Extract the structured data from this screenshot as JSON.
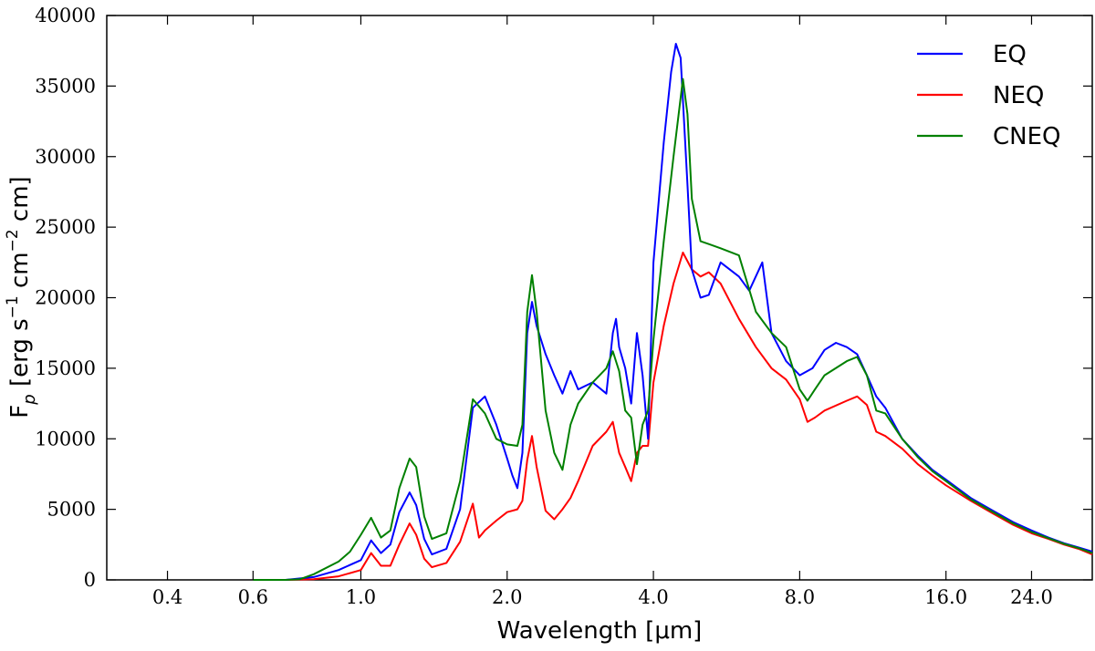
{
  "chart_data": {
    "type": "line",
    "xlabel": "Wavelength [μm]",
    "ylabel": "F_p [erg s⁻¹ cm⁻² cm]",
    "xscale": "log",
    "xlim": [
      0.3,
      32.0
    ],
    "ylim": [
      0,
      40000
    ],
    "xticks": [
      0.4,
      0.6,
      1.0,
      2.0,
      4.0,
      8.0,
      16.0,
      24.0
    ],
    "xtick_labels": [
      "0.4",
      "0.6",
      "1.0",
      "2.0",
      "4.0",
      "8.0",
      "16.0",
      "24.0"
    ],
    "yticks": [
      0,
      5000,
      10000,
      15000,
      20000,
      25000,
      30000,
      35000,
      40000
    ],
    "ytick_labels": [
      "0",
      "5000",
      "10000",
      "15000",
      "20000",
      "25000",
      "30000",
      "35000",
      "40000"
    ],
    "grid": false,
    "legend_position": "top-right",
    "series": [
      {
        "name": "EQ",
        "color": "#0000ff",
        "points": [
          [
            0.6,
            0
          ],
          [
            0.7,
            0
          ],
          [
            0.8,
            200
          ],
          [
            0.9,
            700
          ],
          [
            1.0,
            1400
          ],
          [
            1.05,
            2800
          ],
          [
            1.1,
            1900
          ],
          [
            1.15,
            2500
          ],
          [
            1.2,
            4800
          ],
          [
            1.26,
            6200
          ],
          [
            1.3,
            5300
          ],
          [
            1.35,
            2900
          ],
          [
            1.4,
            1800
          ],
          [
            1.5,
            2200
          ],
          [
            1.6,
            5000
          ],
          [
            1.7,
            12200
          ],
          [
            1.8,
            13000
          ],
          [
            1.9,
            11000
          ],
          [
            2.0,
            8600
          ],
          [
            2.05,
            7400
          ],
          [
            2.1,
            6500
          ],
          [
            2.15,
            9000
          ],
          [
            2.2,
            17500
          ],
          [
            2.25,
            19700
          ],
          [
            2.3,
            18000
          ],
          [
            2.4,
            16000
          ],
          [
            2.5,
            14500
          ],
          [
            2.6,
            13200
          ],
          [
            2.7,
            14800
          ],
          [
            2.8,
            13500
          ],
          [
            3.0,
            14000
          ],
          [
            3.2,
            13200
          ],
          [
            3.3,
            17500
          ],
          [
            3.35,
            18500
          ],
          [
            3.4,
            16500
          ],
          [
            3.5,
            15000
          ],
          [
            3.6,
            12500
          ],
          [
            3.7,
            17500
          ],
          [
            3.8,
            14500
          ],
          [
            3.9,
            10000
          ],
          [
            4.0,
            22500
          ],
          [
            4.2,
            31000
          ],
          [
            4.35,
            36000
          ],
          [
            4.45,
            38000
          ],
          [
            4.55,
            37000
          ],
          [
            4.7,
            28000
          ],
          [
            4.8,
            22000
          ],
          [
            5.0,
            20000
          ],
          [
            5.2,
            20200
          ],
          [
            5.5,
            22500
          ],
          [
            6.0,
            21500
          ],
          [
            6.3,
            20500
          ],
          [
            6.7,
            22500
          ],
          [
            7.0,
            17500
          ],
          [
            7.5,
            15500
          ],
          [
            8.0,
            14500
          ],
          [
            8.5,
            15000
          ],
          [
            9.0,
            16300
          ],
          [
            9.5,
            16800
          ],
          [
            10.0,
            16500
          ],
          [
            10.5,
            16000
          ],
          [
            11.0,
            14500
          ],
          [
            11.5,
            13000
          ],
          [
            12.0,
            12200
          ],
          [
            13.0,
            10000
          ],
          [
            14.0,
            8800
          ],
          [
            15.0,
            7800
          ],
          [
            16.0,
            7100
          ],
          [
            18.0,
            5800
          ],
          [
            20.0,
            4900
          ],
          [
            22.0,
            4100
          ],
          [
            24.0,
            3500
          ],
          [
            26.0,
            3000
          ],
          [
            28.0,
            2600
          ],
          [
            30.0,
            2300
          ],
          [
            32.0,
            2000
          ]
        ]
      },
      {
        "name": "NEQ",
        "color": "#ff0000",
        "points": [
          [
            0.6,
            0
          ],
          [
            0.7,
            0
          ],
          [
            0.8,
            50
          ],
          [
            0.9,
            250
          ],
          [
            1.0,
            700
          ],
          [
            1.05,
            1900
          ],
          [
            1.1,
            1000
          ],
          [
            1.15,
            1000
          ],
          [
            1.2,
            2500
          ],
          [
            1.26,
            4000
          ],
          [
            1.3,
            3200
          ],
          [
            1.35,
            1500
          ],
          [
            1.4,
            900
          ],
          [
            1.5,
            1200
          ],
          [
            1.6,
            2700
          ],
          [
            1.7,
            5400
          ],
          [
            1.75,
            3000
          ],
          [
            1.8,
            3500
          ],
          [
            1.9,
            4200
          ],
          [
            2.0,
            4800
          ],
          [
            2.1,
            5000
          ],
          [
            2.15,
            5600
          ],
          [
            2.2,
            8500
          ],
          [
            2.25,
            10200
          ],
          [
            2.3,
            8000
          ],
          [
            2.4,
            4900
          ],
          [
            2.5,
            4300
          ],
          [
            2.6,
            5000
          ],
          [
            2.7,
            5800
          ],
          [
            2.8,
            7000
          ],
          [
            3.0,
            9500
          ],
          [
            3.2,
            10500
          ],
          [
            3.3,
            11200
          ],
          [
            3.4,
            9000
          ],
          [
            3.5,
            8000
          ],
          [
            3.6,
            7000
          ],
          [
            3.7,
            9000
          ],
          [
            3.8,
            9500
          ],
          [
            3.9,
            9500
          ],
          [
            4.0,
            14000
          ],
          [
            4.2,
            18000
          ],
          [
            4.4,
            21000
          ],
          [
            4.6,
            23200
          ],
          [
            4.8,
            22000
          ],
          [
            5.0,
            21500
          ],
          [
            5.2,
            21800
          ],
          [
            5.5,
            21000
          ],
          [
            6.0,
            18500
          ],
          [
            6.5,
            16500
          ],
          [
            7.0,
            15000
          ],
          [
            7.5,
            14200
          ],
          [
            8.0,
            12800
          ],
          [
            8.3,
            11200
          ],
          [
            8.6,
            11500
          ],
          [
            9.0,
            12000
          ],
          [
            10.0,
            12700
          ],
          [
            10.5,
            13000
          ],
          [
            11.0,
            12400
          ],
          [
            11.5,
            10500
          ],
          [
            12.0,
            10200
          ],
          [
            13.0,
            9300
          ],
          [
            14.0,
            8200
          ],
          [
            15.0,
            7400
          ],
          [
            16.0,
            6700
          ],
          [
            18.0,
            5600
          ],
          [
            20.0,
            4700
          ],
          [
            22.0,
            3900
          ],
          [
            24.0,
            3300
          ],
          [
            26.0,
            2900
          ],
          [
            28.0,
            2500
          ],
          [
            30.0,
            2200
          ],
          [
            32.0,
            1800
          ]
        ]
      },
      {
        "name": "CNEQ",
        "color": "#008000",
        "points": [
          [
            0.6,
            0
          ],
          [
            0.7,
            0
          ],
          [
            0.75,
            50
          ],
          [
            0.8,
            400
          ],
          [
            0.9,
            1300
          ],
          [
            0.95,
            2000
          ],
          [
            1.0,
            3200
          ],
          [
            1.05,
            4400
          ],
          [
            1.1,
            3000
          ],
          [
            1.15,
            3500
          ],
          [
            1.2,
            6500
          ],
          [
            1.26,
            8600
          ],
          [
            1.3,
            8000
          ],
          [
            1.35,
            4500
          ],
          [
            1.4,
            2900
          ],
          [
            1.5,
            3300
          ],
          [
            1.6,
            7000
          ],
          [
            1.7,
            12800
          ],
          [
            1.8,
            11800
          ],
          [
            1.9,
            10000
          ],
          [
            2.0,
            9600
          ],
          [
            2.1,
            9500
          ],
          [
            2.15,
            11000
          ],
          [
            2.2,
            19000
          ],
          [
            2.25,
            21600
          ],
          [
            2.3,
            19000
          ],
          [
            2.4,
            12000
          ],
          [
            2.5,
            9000
          ],
          [
            2.6,
            7800
          ],
          [
            2.7,
            11000
          ],
          [
            2.8,
            12500
          ],
          [
            3.0,
            14000
          ],
          [
            3.2,
            15000
          ],
          [
            3.3,
            16200
          ],
          [
            3.4,
            14800
          ],
          [
            3.5,
            12000
          ],
          [
            3.6,
            11500
          ],
          [
            3.7,
            8200
          ],
          [
            3.8,
            11000
          ],
          [
            3.9,
            12000
          ],
          [
            4.0,
            17000
          ],
          [
            4.2,
            24000
          ],
          [
            4.4,
            30000
          ],
          [
            4.6,
            35500
          ],
          [
            4.7,
            33000
          ],
          [
            4.8,
            27000
          ],
          [
            5.0,
            24000
          ],
          [
            5.2,
            23800
          ],
          [
            5.5,
            23500
          ],
          [
            6.0,
            23000
          ],
          [
            6.5,
            19000
          ],
          [
            7.0,
            17500
          ],
          [
            7.5,
            16500
          ],
          [
            8.0,
            13500
          ],
          [
            8.3,
            12700
          ],
          [
            8.6,
            13500
          ],
          [
            9.0,
            14500
          ],
          [
            10.0,
            15500
          ],
          [
            10.5,
            15800
          ],
          [
            11.0,
            14500
          ],
          [
            11.5,
            12000
          ],
          [
            12.0,
            11800
          ],
          [
            13.0,
            10000
          ],
          [
            14.0,
            8700
          ],
          [
            15.0,
            7700
          ],
          [
            16.0,
            7000
          ],
          [
            18.0,
            5700
          ],
          [
            20.0,
            4800
          ],
          [
            22.0,
            4000
          ],
          [
            24.0,
            3400
          ],
          [
            26.0,
            2950
          ],
          [
            28.0,
            2550
          ],
          [
            30.0,
            2250
          ],
          [
            32.0,
            1900
          ]
        ]
      }
    ]
  }
}
